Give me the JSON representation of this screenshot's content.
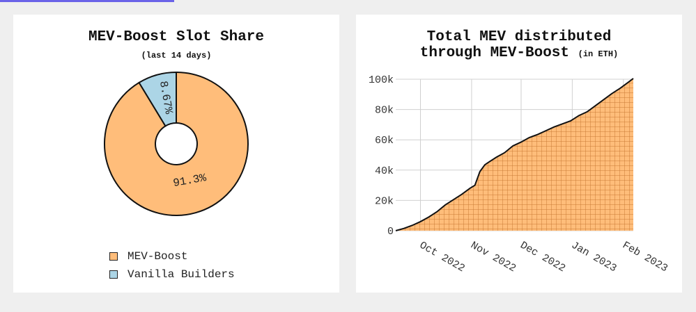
{
  "pie_card": {
    "title": "MEV-Boost Slot Share",
    "subtitle": "(last 14 days)",
    "legend": [
      {
        "label": "MEV-Boost",
        "color": "#ffbd7a"
      },
      {
        "label": "Vanilla Builders",
        "color": "#acd5e6"
      }
    ]
  },
  "line_card": {
    "title_line1": "Total MEV distributed",
    "title_line2": "through MEV-Boost",
    "title_unit": "(in ETH)"
  },
  "chart_data": [
    {
      "type": "pie",
      "title": "MEV-Boost Slot Share",
      "subtitle": "(last 14 days)",
      "categories": [
        "MEV-Boost",
        "Vanilla Builders"
      ],
      "values": [
        91.3,
        8.67
      ],
      "labels": [
        "91.3%",
        "8.67%"
      ],
      "colors": [
        "#ffbd7a",
        "#acd5e6"
      ],
      "donut": true,
      "legend_position": "bottom"
    },
    {
      "type": "area",
      "title": "Total MEV distributed through MEV-Boost (in ETH)",
      "fill_color": "#ffbd7a",
      "hatch": "grid",
      "grid": true,
      "ylim": [
        0,
        100000
      ],
      "yticks": [
        0,
        20000,
        40000,
        60000,
        80000,
        100000
      ],
      "ytick_labels": [
        "0",
        "20k",
        "40k",
        "60k",
        "80k",
        "100k"
      ],
      "xlim": [
        "2022-09-16",
        "2023-02-07"
      ],
      "xticks": [
        "2022-10-01",
        "2022-11-01",
        "2022-12-01",
        "2023-01-01",
        "2023-02-01"
      ],
      "xtick_labels": [
        "Oct 2022",
        "Nov 2022",
        "Dec 2022",
        "Jan 2023",
        "Feb 2023"
      ],
      "x": [
        "2022-09-16",
        "2022-09-21",
        "2022-09-26",
        "2022-10-01",
        "2022-10-06",
        "2022-10-11",
        "2022-10-16",
        "2022-10-21",
        "2022-10-26",
        "2022-10-31",
        "2022-11-03",
        "2022-11-06",
        "2022-11-09",
        "2022-11-11",
        "2022-11-16",
        "2022-11-21",
        "2022-11-26",
        "2022-12-01",
        "2022-12-06",
        "2022-12-11",
        "2022-12-16",
        "2022-12-21",
        "2022-12-26",
        "2022-12-31",
        "2023-01-05",
        "2023-01-10",
        "2023-01-15",
        "2023-01-20",
        "2023-01-25",
        "2023-01-30",
        "2023-02-04",
        "2023-02-07"
      ],
      "values": [
        0,
        1500,
        3500,
        6000,
        9000,
        12500,
        17000,
        20500,
        24000,
        28000,
        30000,
        39000,
        43500,
        45000,
        48500,
        51500,
        56000,
        58500,
        61500,
        63500,
        66000,
        68500,
        70500,
        72500,
        76000,
        78500,
        82500,
        86500,
        90500,
        94000,
        98000,
        100500
      ]
    }
  ]
}
